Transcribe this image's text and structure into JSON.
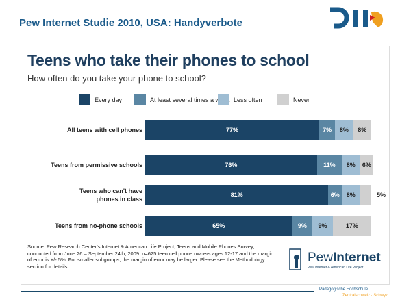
{
  "slide": {
    "title": "Pew Internet Studie 2010, USA: Handyverbote",
    "footer_line1": "Pädagogische Hochschule",
    "footer_line2": "Zentralschweiz · Schwyz",
    "logo": "PHZ"
  },
  "chart_data": {
    "type": "bar",
    "orientation": "horizontal",
    "stacked": true,
    "title": "Teens who take their phones to school",
    "subtitle": "How often do you take your phone to school?",
    "legend_position": "top",
    "categories": [
      "All teens with cell phones",
      "Teens from permissive schools",
      "Teens who can't have phones in class",
      "Teens from no-phone schools"
    ],
    "series": [
      {
        "name": "Every day",
        "color": "#1b4466",
        "values": [
          77,
          76,
          81,
          65
        ]
      },
      {
        "name": "At least several times a week",
        "color": "#5a86a3",
        "values": [
          7,
          11,
          6,
          9
        ]
      },
      {
        "name": "Less often",
        "color": "#9fbdd3",
        "values": [
          8,
          8,
          8,
          9
        ]
      },
      {
        "name": "Never",
        "color": "#d0d0d0",
        "values": [
          8,
          6,
          5,
          17
        ]
      }
    ],
    "xlim": [
      0,
      100
    ],
    "source": "Source: Pew Research Center's Internet & American Life Project, Teens and Mobile Phones Survey, conducted from June 26 – September 24th, 2009. n=625 teen cell phone owners ages 12-17 and the margin of error is +/- 5%. For smaller subgroups, the margin of error may be larger. Please see the Methodology section for details.",
    "logo_text": "Pew Internet",
    "logo_subtext": "Pew Internet & American Life Project"
  }
}
